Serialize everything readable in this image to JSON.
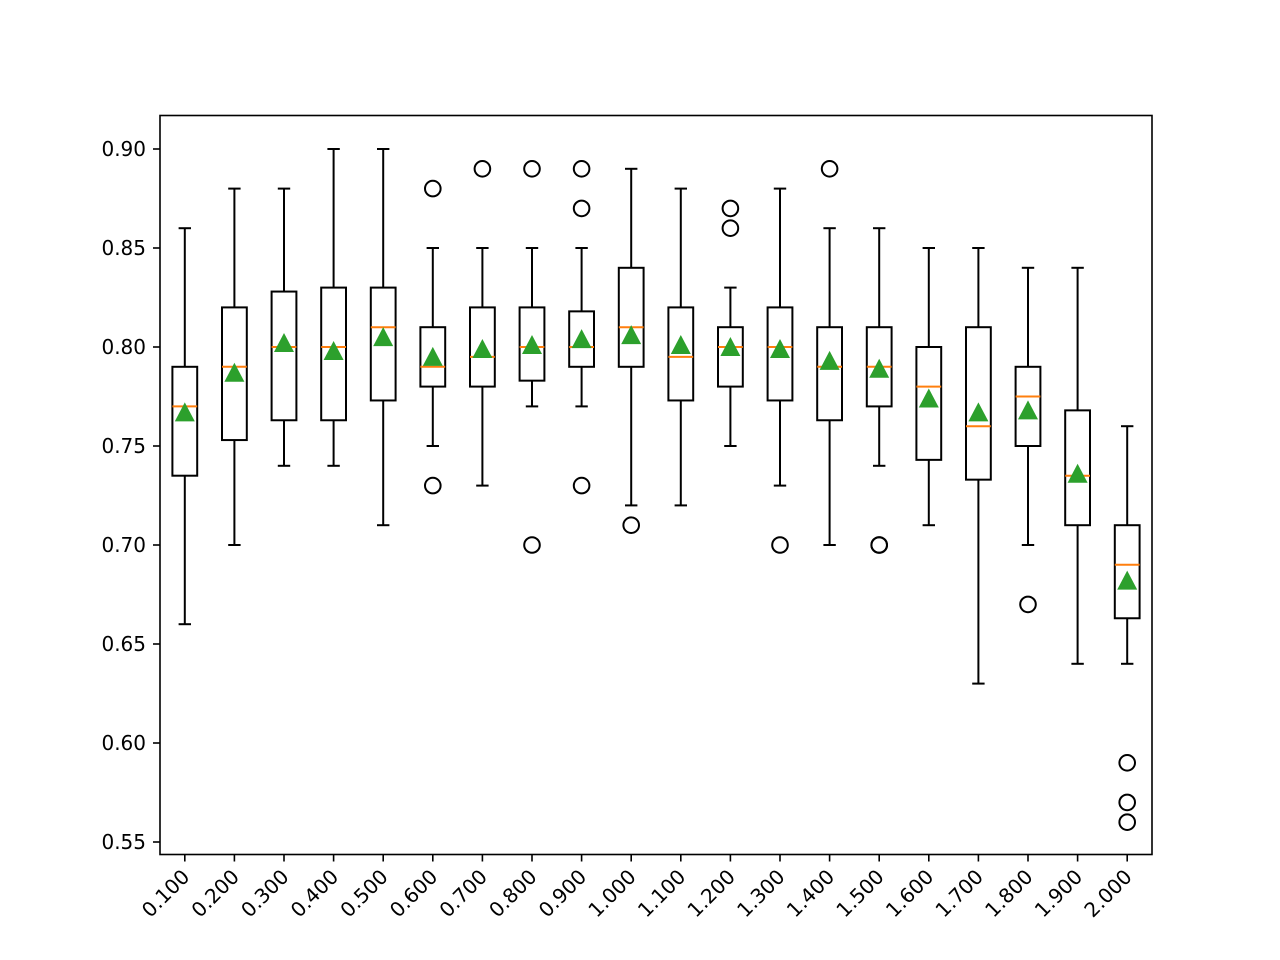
{
  "chart_data": {
    "type": "box",
    "title": "",
    "xlabel": "",
    "ylabel": "",
    "ylim": [
      0.543,
      0.917
    ],
    "yticks": [
      "0.55",
      "0.60",
      "0.65",
      "0.70",
      "0.75",
      "0.80",
      "0.85",
      "0.90"
    ],
    "ytick_values": [
      0.55,
      0.6,
      0.65,
      0.7,
      0.75,
      0.8,
      0.85,
      0.9
    ],
    "categories": [
      "0.100",
      "0.200",
      "0.300",
      "0.400",
      "0.500",
      "0.600",
      "0.700",
      "0.800",
      "0.900",
      "1.000",
      "1.100",
      "1.200",
      "1.300",
      "1.400",
      "1.500",
      "1.600",
      "1.700",
      "1.800",
      "1.900",
      "2.000"
    ],
    "grid": false,
    "legend": null,
    "show_means": true,
    "colors": {
      "box": "#000000",
      "median": "#ff7f0e",
      "mean": "#2ca02c",
      "outlier": "#000000"
    },
    "boxes": [
      {
        "whislo": 0.66,
        "q1": 0.735,
        "med": 0.77,
        "q3": 0.79,
        "whishi": 0.86,
        "mean": 0.767,
        "fliers": []
      },
      {
        "whislo": 0.7,
        "q1": 0.753,
        "med": 0.79,
        "q3": 0.82,
        "whishi": 0.88,
        "mean": 0.787,
        "fliers": []
      },
      {
        "whislo": 0.74,
        "q1": 0.763,
        "med": 0.8,
        "q3": 0.828,
        "whishi": 0.88,
        "mean": 0.802,
        "fliers": []
      },
      {
        "whislo": 0.74,
        "q1": 0.763,
        "med": 0.8,
        "q3": 0.83,
        "whishi": 0.9,
        "mean": 0.798,
        "fliers": []
      },
      {
        "whislo": 0.71,
        "q1": 0.773,
        "med": 0.81,
        "q3": 0.83,
        "whishi": 0.9,
        "mean": 0.805,
        "fliers": []
      },
      {
        "whislo": 0.75,
        "q1": 0.78,
        "med": 0.79,
        "q3": 0.81,
        "whishi": 0.85,
        "mean": 0.795,
        "fliers": [
          0.88,
          0.73
        ]
      },
      {
        "whislo": 0.73,
        "q1": 0.78,
        "med": 0.795,
        "q3": 0.82,
        "whishi": 0.85,
        "mean": 0.799,
        "fliers": [
          0.89
        ]
      },
      {
        "whislo": 0.77,
        "q1": 0.783,
        "med": 0.8,
        "q3": 0.82,
        "whishi": 0.85,
        "mean": 0.801,
        "fliers": [
          0.89,
          0.7
        ]
      },
      {
        "whislo": 0.77,
        "q1": 0.79,
        "med": 0.8,
        "q3": 0.818,
        "whishi": 0.85,
        "mean": 0.804,
        "fliers": [
          0.89,
          0.87,
          0.73
        ]
      },
      {
        "whislo": 0.72,
        "q1": 0.79,
        "med": 0.81,
        "q3": 0.84,
        "whishi": 0.89,
        "mean": 0.806,
        "fliers": [
          0.71
        ]
      },
      {
        "whislo": 0.72,
        "q1": 0.773,
        "med": 0.795,
        "q3": 0.82,
        "whishi": 0.88,
        "mean": 0.801,
        "fliers": []
      },
      {
        "whislo": 0.75,
        "q1": 0.78,
        "med": 0.8,
        "q3": 0.81,
        "whishi": 0.83,
        "mean": 0.8,
        "fliers": [
          0.87,
          0.86
        ]
      },
      {
        "whislo": 0.73,
        "q1": 0.773,
        "med": 0.8,
        "q3": 0.82,
        "whishi": 0.88,
        "mean": 0.799,
        "fliers": [
          0.7
        ]
      },
      {
        "whislo": 0.7,
        "q1": 0.763,
        "med": 0.79,
        "q3": 0.81,
        "whishi": 0.86,
        "mean": 0.793,
        "fliers": [
          0.89
        ]
      },
      {
        "whislo": 0.74,
        "q1": 0.77,
        "med": 0.79,
        "q3": 0.81,
        "whishi": 0.86,
        "mean": 0.789,
        "fliers": [
          0.7,
          0.7
        ]
      },
      {
        "whislo": 0.71,
        "q1": 0.743,
        "med": 0.78,
        "q3": 0.8,
        "whishi": 0.85,
        "mean": 0.774,
        "fliers": []
      },
      {
        "whislo": 0.63,
        "q1": 0.733,
        "med": 0.76,
        "q3": 0.81,
        "whishi": 0.85,
        "mean": 0.767,
        "fliers": []
      },
      {
        "whislo": 0.7,
        "q1": 0.75,
        "med": 0.775,
        "q3": 0.79,
        "whishi": 0.84,
        "mean": 0.768,
        "fliers": [
          0.67
        ]
      },
      {
        "whislo": 0.64,
        "q1": 0.71,
        "med": 0.735,
        "q3": 0.768,
        "whishi": 0.84,
        "mean": 0.736,
        "fliers": []
      },
      {
        "whislo": 0.64,
        "q1": 0.663,
        "med": 0.69,
        "q3": 0.71,
        "whishi": 0.76,
        "mean": 0.682,
        "fliers": [
          0.59,
          0.57,
          0.56
        ]
      }
    ]
  }
}
